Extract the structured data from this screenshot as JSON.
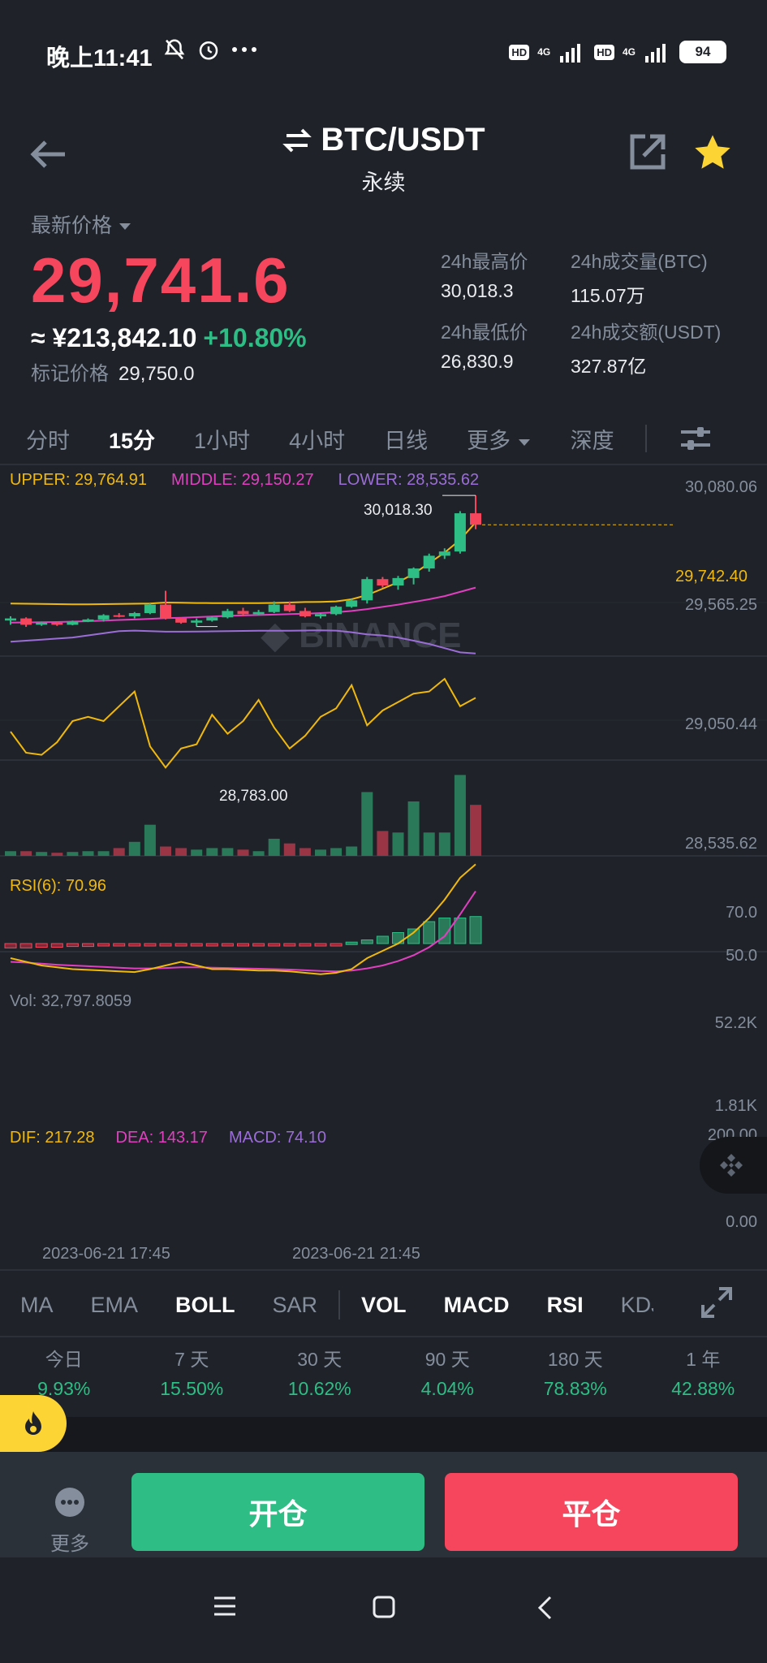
{
  "status_bar": {
    "time": "晚上11:41",
    "hd1": "HD",
    "net1": "4G",
    "hd2": "HD",
    "net2": "4G",
    "battery": "94"
  },
  "header": {
    "pair": "BTC/USDT",
    "contract_type": "永续"
  },
  "price": {
    "label": "最新价格",
    "last": "29,741.6",
    "cny": "≈ ¥213,842.10",
    "change": "+10.80%",
    "mark_label": "标记价格",
    "mark_value": "29,750.0"
  },
  "stats": [
    {
      "label": "24h最高价",
      "value": "30,018.3"
    },
    {
      "label": "24h成交量(BTC)",
      "value": "115.07万"
    },
    {
      "label": "24h最低价",
      "value": "26,830.9"
    },
    {
      "label": "24h成交额(USDT)",
      "value": "327.87亿"
    }
  ],
  "timeframes": [
    "分时",
    "15分",
    "1小时",
    "4小时",
    "日线",
    "更多",
    "深度"
  ],
  "active_timeframe": "15分",
  "chart": {
    "watermark": "BINANCE",
    "boll": {
      "upper": "UPPER: 29,764.91",
      "middle": "MIDDLE: 29,150.27",
      "lower": "LOWER: 28,535.62"
    },
    "price_axis": [
      "30,080.06",
      "29,565.25",
      "29,050.44",
      "28,535.62"
    ],
    "current_price_tag": "29,742.40",
    "high_marker": "30,018.30",
    "low_marker": "28,783.00",
    "rsi_legend": "RSI(6): 70.96",
    "rsi_axis": [
      "70.0",
      "50.0"
    ],
    "vol_legend": "Vol: 32,797.8059",
    "vol_axis": [
      "52.2K",
      "1.81K"
    ],
    "macd": {
      "dif": "DIF: 217.28",
      "dea": "DEA: 143.17",
      "macd": "MACD: 74.10"
    },
    "macd_axis": [
      "200.00",
      "0.00"
    ],
    "dates": [
      "2023-06-21 17:45",
      "2023-06-21 21:45"
    ],
    "colors": {
      "up": "#2ebd85",
      "down": "#f6465d",
      "upper": "#f0b90b",
      "middle": "#e040c0",
      "lower": "#9b6dd6"
    }
  },
  "chart_data": {
    "type": "candlestick",
    "candles": [
      {
        "o": 28840,
        "h": 28880,
        "l": 28800,
        "c": 28860
      },
      {
        "o": 28860,
        "h": 28870,
        "l": 28780,
        "c": 28800
      },
      {
        "o": 28800,
        "h": 28830,
        "l": 28790,
        "c": 28820
      },
      {
        "o": 28820,
        "h": 28830,
        "l": 28790,
        "c": 28800
      },
      {
        "o": 28800,
        "h": 28840,
        "l": 28795,
        "c": 28830
      },
      {
        "o": 28830,
        "h": 28860,
        "l": 28825,
        "c": 28850
      },
      {
        "o": 28850,
        "h": 28900,
        "l": 28830,
        "c": 28890
      },
      {
        "o": 28890,
        "h": 28910,
        "l": 28870,
        "c": 28880
      },
      {
        "o": 28880,
        "h": 28920,
        "l": 28860,
        "c": 28910
      },
      {
        "o": 28910,
        "h": 29000,
        "l": 28900,
        "c": 28990
      },
      {
        "o": 28990,
        "h": 29120,
        "l": 28850,
        "c": 28860
      },
      {
        "o": 28860,
        "h": 28870,
        "l": 28810,
        "c": 28820
      },
      {
        "o": 28820,
        "h": 28860,
        "l": 28783,
        "c": 28840
      },
      {
        "o": 28840,
        "h": 28880,
        "l": 28830,
        "c": 28870
      },
      {
        "o": 28870,
        "h": 28950,
        "l": 28860,
        "c": 28930
      },
      {
        "o": 28930,
        "h": 28960,
        "l": 28880,
        "c": 28900
      },
      {
        "o": 28900,
        "h": 28940,
        "l": 28890,
        "c": 28920
      },
      {
        "o": 28920,
        "h": 29020,
        "l": 28910,
        "c": 28990
      },
      {
        "o": 28990,
        "h": 29020,
        "l": 28920,
        "c": 28930
      },
      {
        "o": 28930,
        "h": 28960,
        "l": 28870,
        "c": 28880
      },
      {
        "o": 28880,
        "h": 28910,
        "l": 28860,
        "c": 28900
      },
      {
        "o": 28900,
        "h": 28980,
        "l": 28890,
        "c": 28970
      },
      {
        "o": 28970,
        "h": 29040,
        "l": 28960,
        "c": 29030
      },
      {
        "o": 29030,
        "h": 29250,
        "l": 29000,
        "c": 29230
      },
      {
        "o": 29230,
        "h": 29250,
        "l": 29150,
        "c": 29170
      },
      {
        "o": 29170,
        "h": 29260,
        "l": 29130,
        "c": 29240
      },
      {
        "o": 29240,
        "h": 29340,
        "l": 29180,
        "c": 29330
      },
      {
        "o": 29330,
        "h": 29470,
        "l": 29300,
        "c": 29450
      },
      {
        "o": 29450,
        "h": 29520,
        "l": 29420,
        "c": 29490
      },
      {
        "o": 29490,
        "h": 29870,
        "l": 29470,
        "c": 29850
      },
      {
        "o": 29850,
        "h": 30018.3,
        "l": 29700,
        "c": 29742
      }
    ],
    "boll_upper": [
      29000,
      28998,
      28996,
      28994,
      28993,
      28992,
      28994,
      28996,
      28998,
      29000,
      29010,
      29008,
      29005,
      29004,
      29004,
      29004,
      29004,
      29006,
      29010,
      29014,
      29016,
      29020,
      29040,
      29080,
      29140,
      29200,
      29280,
      29380,
      29480,
      29600,
      29765
    ],
    "boll_middle": [
      28820,
      28822,
      28824,
      28826,
      28830,
      28834,
      28840,
      28845,
      28850,
      28856,
      28862,
      28866,
      28872,
      28878,
      28884,
      28888,
      28892,
      28896,
      28900,
      28904,
      28910,
      28918,
      28930,
      28948,
      28968,
      28990,
      29015,
      29040,
      29070,
      29110,
      29150
    ],
    "boll_lower": [
      28640,
      28650,
      28660,
      28670,
      28680,
      28700,
      28720,
      28740,
      28745,
      28740,
      28735,
      28735,
      28736,
      28738,
      28740,
      28742,
      28744,
      28744,
      28744,
      28746,
      28748,
      28745,
      28730,
      28710,
      28700,
      28680,
      28650,
      28620,
      28580,
      28540,
      28530
    ],
    "rsi": [
      55,
      45,
      44,
      50,
      60,
      62,
      60,
      67,
      74,
      48,
      38,
      47,
      49,
      63,
      54,
      60,
      70,
      57,
      47,
      53,
      62,
      66,
      77,
      58,
      65,
      69,
      73,
      74,
      80,
      67,
      71
    ],
    "volume": [
      3000,
      3000,
      2500,
      2000,
      2500,
      3000,
      3000,
      5000,
      9000,
      20000,
      6000,
      5000,
      4000,
      5000,
      5000,
      4000,
      3000,
      11000,
      8000,
      5000,
      4000,
      5000,
      6000,
      41000,
      16000,
      15000,
      35000,
      15000,
      15000,
      52000,
      32798
    ],
    "macd_dif": [
      -40,
      -50,
      -60,
      -65,
      -70,
      -72,
      -74,
      -76,
      -78,
      -70,
      -60,
      -50,
      -60,
      -70,
      -70,
      -72,
      -74,
      -74,
      -76,
      -80,
      -84,
      -80,
      -70,
      -40,
      -20,
      0,
      30,
      70,
      120,
      180,
      217
    ],
    "macd_dea": [
      -50,
      -52,
      -55,
      -58,
      -60,
      -62,
      -64,
      -66,
      -68,
      -68,
      -67,
      -65,
      -65,
      -66,
      -67,
      -68,
      -69,
      -70,
      -71,
      -73,
      -75,
      -76,
      -74,
      -68,
      -60,
      -48,
      -32,
      -10,
      20,
      80,
      143
    ],
    "macd_hist": [
      -12,
      -12,
      -10,
      -10,
      -8,
      -8,
      -6,
      -6,
      -6,
      -4,
      -2,
      -4,
      -4,
      -4,
      -4,
      -4,
      -4,
      -4,
      -4,
      -4,
      -6,
      -2,
      4,
      10,
      20,
      30,
      40,
      60,
      70,
      70,
      74
    ],
    "price_range": [
      28535.62,
      30080.06
    ]
  },
  "indicators": [
    "MA",
    "EMA",
    "BOLL",
    "SAR",
    "VOL",
    "MACD",
    "RSI",
    "KDJ"
  ],
  "active_indicators": [
    "BOLL",
    "VOL",
    "MACD",
    "RSI"
  ],
  "performance": [
    {
      "label": "今日",
      "value": "9.93%"
    },
    {
      "label": "7 天",
      "value": "15.50%"
    },
    {
      "label": "30 天",
      "value": "10.62%"
    },
    {
      "label": "90 天",
      "value": "4.04%"
    },
    {
      "label": "180 天",
      "value": "78.83%"
    },
    {
      "label": "1 年",
      "value": "42.88%"
    }
  ],
  "bottom": {
    "more_label": "更多",
    "open_label": "开仓",
    "close_label": "平仓"
  }
}
